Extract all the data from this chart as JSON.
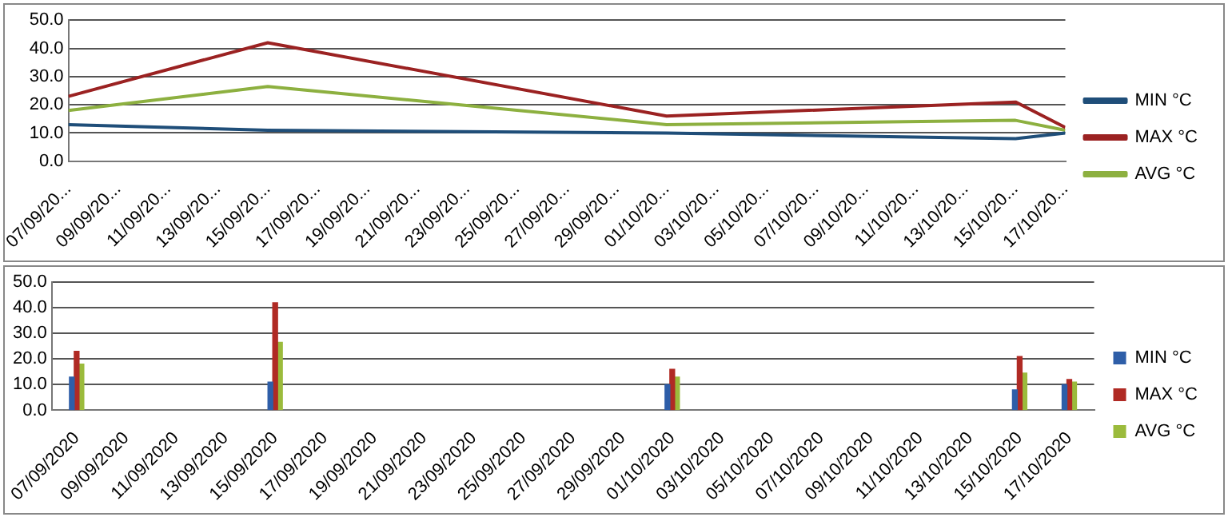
{
  "chart_data": [
    {
      "type": "line",
      "x": [
        "2020-09-07",
        "2020-09-15",
        "2020-10-01",
        "2020-10-15",
        "2020-10-17"
      ],
      "series": [
        {
          "name": "MIN °C",
          "color": "#1f4e79",
          "values": [
            13,
            11,
            10,
            8,
            10
          ]
        },
        {
          "name": "MAX °C",
          "color": "#9b2222",
          "values": [
            23,
            42,
            16,
            21,
            12
          ]
        },
        {
          "name": "AVG °C",
          "color": "#8db040",
          "values": [
            18,
            26.5,
            13,
            14.5,
            11
          ]
        }
      ],
      "xlim": [
        "2020-09-07",
        "2020-10-17"
      ],
      "xticks": [
        {
          "value": "2020-09-07",
          "label": "07/09/20..."
        },
        {
          "value": "2020-09-09",
          "label": "09/09/20..."
        },
        {
          "value": "2020-09-11",
          "label": "11/09/20..."
        },
        {
          "value": "2020-09-13",
          "label": "13/09/20..."
        },
        {
          "value": "2020-09-15",
          "label": "15/09/20..."
        },
        {
          "value": "2020-09-17",
          "label": "17/09/20..."
        },
        {
          "value": "2020-09-19",
          "label": "19/09/20..."
        },
        {
          "value": "2020-09-21",
          "label": "21/09/20..."
        },
        {
          "value": "2020-09-23",
          "label": "23/09/20..."
        },
        {
          "value": "2020-09-25",
          "label": "25/09/20..."
        },
        {
          "value": "2020-09-27",
          "label": "27/09/20..."
        },
        {
          "value": "2020-09-29",
          "label": "29/09/20..."
        },
        {
          "value": "2020-10-01",
          "label": "01/10/20..."
        },
        {
          "value": "2020-10-03",
          "label": "03/10/20..."
        },
        {
          "value": "2020-10-05",
          "label": "05/10/20..."
        },
        {
          "value": "2020-10-07",
          "label": "07/10/20..."
        },
        {
          "value": "2020-10-09",
          "label": "09/10/20..."
        },
        {
          "value": "2020-10-11",
          "label": "11/10/20..."
        },
        {
          "value": "2020-10-13",
          "label": "13/10/20..."
        },
        {
          "value": "2020-10-15",
          "label": "15/10/20..."
        },
        {
          "value": "2020-10-17",
          "label": "17/10/20..."
        }
      ],
      "ylim": [
        0,
        50
      ],
      "yticks": [
        {
          "value": 0,
          "label": "0.0"
        },
        {
          "value": 10,
          "label": "10.0"
        },
        {
          "value": 20,
          "label": "20.0"
        },
        {
          "value": 30,
          "label": "30.0"
        },
        {
          "value": 40,
          "label": "40.0"
        },
        {
          "value": 50,
          "label": "50.0"
        }
      ],
      "grid": "y",
      "legend": "right",
      "marker": "none",
      "line_style": "solid"
    },
    {
      "type": "bar",
      "x": [
        "2020-09-07",
        "2020-09-15",
        "2020-10-01",
        "2020-10-15",
        "2020-10-17"
      ],
      "series": [
        {
          "name": "MIN °C",
          "color": "#2e5ea8",
          "values": [
            13,
            11,
            10,
            8,
            10
          ]
        },
        {
          "name": "MAX °C",
          "color": "#b02a24",
          "values": [
            23,
            42,
            16,
            21,
            12
          ]
        },
        {
          "name": "AVG °C",
          "color": "#9bbb3c",
          "values": [
            18,
            26.5,
            13,
            14.5,
            11
          ]
        }
      ],
      "xlim": [
        "2020-09-06",
        "2020-10-18"
      ],
      "xticks": [
        {
          "value": "2020-09-07",
          "label": "07/09/2020"
        },
        {
          "value": "2020-09-09",
          "label": "09/09/2020"
        },
        {
          "value": "2020-09-11",
          "label": "11/09/2020"
        },
        {
          "value": "2020-09-13",
          "label": "13/09/2020"
        },
        {
          "value": "2020-09-15",
          "label": "15/09/2020"
        },
        {
          "value": "2020-09-17",
          "label": "17/09/2020"
        },
        {
          "value": "2020-09-19",
          "label": "19/09/2020"
        },
        {
          "value": "2020-09-21",
          "label": "21/09/2020"
        },
        {
          "value": "2020-09-23",
          "label": "23/09/2020"
        },
        {
          "value": "2020-09-25",
          "label": "25/09/2020"
        },
        {
          "value": "2020-09-27",
          "label": "27/09/2020"
        },
        {
          "value": "2020-09-29",
          "label": "29/09/2020"
        },
        {
          "value": "2020-10-01",
          "label": "01/10/2020"
        },
        {
          "value": "2020-10-03",
          "label": "03/10/2020"
        },
        {
          "value": "2020-10-05",
          "label": "05/10/2020"
        },
        {
          "value": "2020-10-07",
          "label": "07/10/2020"
        },
        {
          "value": "2020-10-09",
          "label": "09/10/2020"
        },
        {
          "value": "2020-10-11",
          "label": "11/10/2020"
        },
        {
          "value": "2020-10-13",
          "label": "13/10/2020"
        },
        {
          "value": "2020-10-15",
          "label": "15/10/2020"
        },
        {
          "value": "2020-10-17",
          "label": "17/10/2020"
        }
      ],
      "ylim": [
        0,
        50
      ],
      "yticks": [
        {
          "value": 0,
          "label": "0.0"
        },
        {
          "value": 10,
          "label": "10.0"
        },
        {
          "value": 20,
          "label": "20.0"
        },
        {
          "value": 30,
          "label": "30.0"
        },
        {
          "value": 40,
          "label": "40.0"
        },
        {
          "value": 50,
          "label": "50.0"
        }
      ],
      "grid": "y",
      "legend": "right"
    }
  ]
}
